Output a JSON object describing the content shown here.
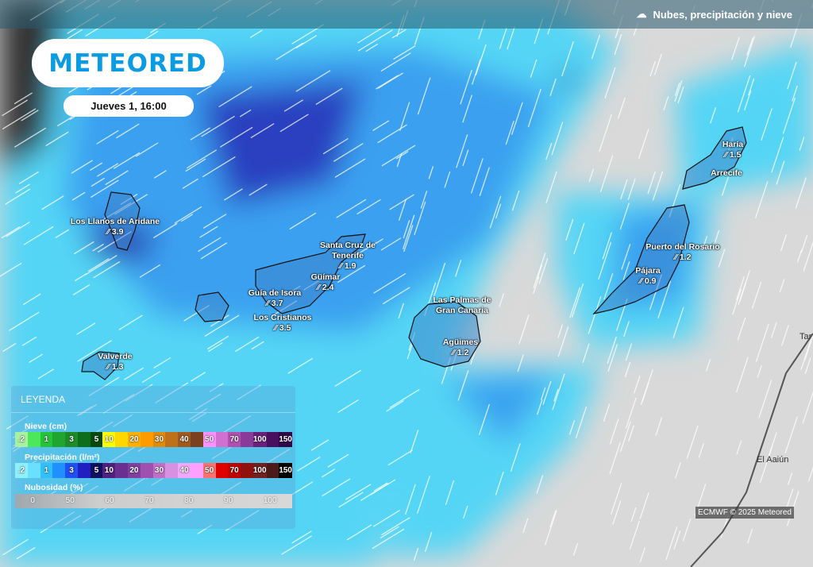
{
  "header": {
    "layer_title": "Nubes, precipitación y nieve",
    "layer_icon": "cloud-rain-icon"
  },
  "logo": "METEORED",
  "date": "Jueves 1, 16:00",
  "locations": [
    {
      "name": "Los Llanos de Aridane",
      "value": "3.9"
    },
    {
      "name": "Santa Cruz de Tenerife",
      "value": "1.9"
    },
    {
      "name": "Güímar",
      "value": "2.4"
    },
    {
      "name": "Guía de Isora",
      "value": "3.7"
    },
    {
      "name": "Los Cristianos",
      "value": "3.5"
    },
    {
      "name": "Valverde",
      "value": "1.3"
    },
    {
      "name": "Las Palmas de Gran Canaria",
      "value": ""
    },
    {
      "name": "Agüimes",
      "value": "1.2"
    },
    {
      "name": "Haría",
      "value": "1.5"
    },
    {
      "name": "Arrecife",
      "value": ""
    },
    {
      "name": "Puerto del Rosario",
      "value": "1.2"
    },
    {
      "name": "Pájara",
      "value": "0.9"
    }
  ],
  "towns": {
    "el_aaiun": "El Aaiún",
    "tarfaya": "Tar"
  },
  "legend": {
    "title": "LEYENDA",
    "snow": {
      "title": "Nieve (cm)",
      "labels": [
        ".2",
        "",
        "1",
        "",
        "3",
        "",
        "5",
        "10",
        "",
        "20",
        "",
        "30",
        "",
        "40",
        "",
        "50",
        "",
        "70",
        "",
        "100",
        "",
        "150"
      ],
      "colors": [
        "#a6f2a0",
        "#4de85a",
        "#26c23a",
        "#1fa530",
        "#1e8a2a",
        "#0f6e1c",
        "#074a10",
        "#ffff00",
        "#ffd700",
        "#ffb000",
        "#ff9a00",
        "#e08a10",
        "#c0701a",
        "#a05a20",
        "#7a4020",
        "#ff90ff",
        "#d070d0",
        "#b050b0",
        "#8a3a9a",
        "#6a207a",
        "#4a1060",
        "#30084a"
      ]
    },
    "precip": {
      "title": "Precipitación (l/m²)",
      "labels": [
        ".2",
        "",
        "1",
        "",
        "3",
        "",
        "5",
        "10",
        "",
        "20",
        "",
        "30",
        "",
        "40",
        "",
        "50",
        "",
        "70",
        "",
        "100",
        "",
        "150"
      ],
      "colors": [
        "#8ef0ff",
        "#6ae0ff",
        "#30c0ff",
        "#2090ff",
        "#2050f0",
        "#2020c0",
        "#101060",
        "#502080",
        "#6a3090",
        "#8040a0",
        "#a050b0",
        "#c070c8",
        "#d890e0",
        "#f0a8f8",
        "#ffa0ff",
        "#ff7070",
        "#e00000",
        "#c00000",
        "#901010",
        "#702020",
        "#4a1a1a",
        "#000000"
      ]
    },
    "cloud": {
      "title": "Nubosidad (%)",
      "labels": [
        "0",
        "50",
        "60",
        "70",
        "80",
        "90",
        "100"
      ]
    }
  },
  "credit": "ECMWF © 2025 Meteored"
}
